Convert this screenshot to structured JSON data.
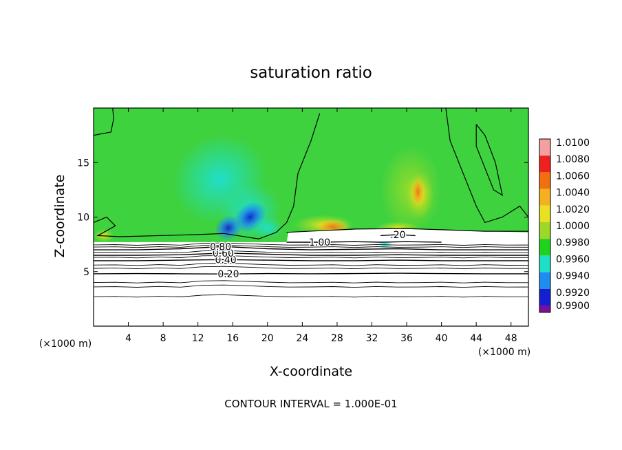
{
  "chart_data": {
    "type": "heatmap",
    "title": "saturation ratio",
    "xlabel": "X-coordinate",
    "ylabel": "Z-coordinate",
    "x_unit_label_left": "(×1000 m)",
    "x_unit_label_right": "(×1000 m)",
    "footnote": "CONTOUR INTERVAL = 1.000E-01",
    "xlim": [
      0,
      50
    ],
    "ylim": [
      0,
      20
    ],
    "x_ticks": [
      4,
      8,
      12,
      16,
      20,
      24,
      28,
      32,
      36,
      40,
      44,
      48
    ],
    "x_tick_labels": [
      "4",
      "8",
      "12",
      "16",
      "20",
      "24",
      "28",
      "32",
      "36",
      "40",
      "44",
      "48"
    ],
    "y_ticks": [
      5,
      10,
      15
    ],
    "y_tick_labels": [
      "5",
      "10",
      "15"
    ],
    "colorbar": {
      "labels": [
        "1.0100",
        "1.0080",
        "1.0060",
        "1.0040",
        "1.0020",
        "1.0000",
        "0.9980",
        "0.9960",
        "0.9940",
        "0.9920",
        "0.9900"
      ],
      "colors": [
        "#f4a0a0",
        "#ee2020",
        "#f07010",
        "#f5b020",
        "#e8e020",
        "#9cd828",
        "#1ed21e",
        "#1ee0c8",
        "#1e8cf0",
        "#1420d0",
        "#7a109a"
      ]
    },
    "colors": {
      "ambient": "#3fd23f",
      "cloud_free": "#ffffff",
      "contour": "#000000"
    },
    "contours": [
      {
        "level": 0.2,
        "label": "0.20",
        "x": [
          0,
          5,
          10,
          15,
          20,
          25,
          30,
          35,
          40,
          45,
          50
        ],
        "y": [
          4.8,
          4.82,
          4.8,
          4.78,
          4.82,
          4.8,
          4.82,
          4.85,
          4.82,
          4.8,
          4.8
        ]
      },
      {
        "level": 0.4,
        "label": "0.40",
        "x": [
          0,
          5,
          10,
          15,
          20,
          25,
          30,
          35,
          40,
          45,
          50
        ],
        "y": [
          6.0,
          6.0,
          6.05,
          6.1,
          6.05,
          6.0,
          6.0,
          6.05,
          6.0,
          6.0,
          6.0
        ]
      },
      {
        "level": 0.6,
        "label": "0.60",
        "x": [
          0,
          5,
          10,
          15,
          20,
          25,
          30,
          35,
          40,
          45,
          50
        ],
        "y": [
          6.5,
          6.5,
          6.55,
          6.7,
          6.6,
          6.5,
          6.5,
          6.55,
          6.5,
          6.5,
          6.5
        ]
      },
      {
        "level": 0.8,
        "label": "0.80",
        "x": [
          0,
          5,
          10,
          15,
          20,
          25,
          30,
          35,
          40,
          45,
          50
        ],
        "y": [
          7.0,
          7.0,
          7.1,
          7.3,
          7.1,
          7.0,
          7.05,
          7.1,
          7.0,
          7.0,
          7.0
        ]
      },
      {
        "level": 1.0,
        "label": "1.00",
        "x": [
          22.2,
          26,
          30,
          33,
          36,
          40
        ],
        "y": [
          7.7,
          7.7,
          7.75,
          7.7,
          7.75,
          7.7
        ]
      },
      {
        "level": 1.2,
        "label": ".20",
        "x": [
          33,
          35,
          37
        ],
        "y": [
          8.3,
          8.4,
          8.3
        ]
      }
    ]
  }
}
